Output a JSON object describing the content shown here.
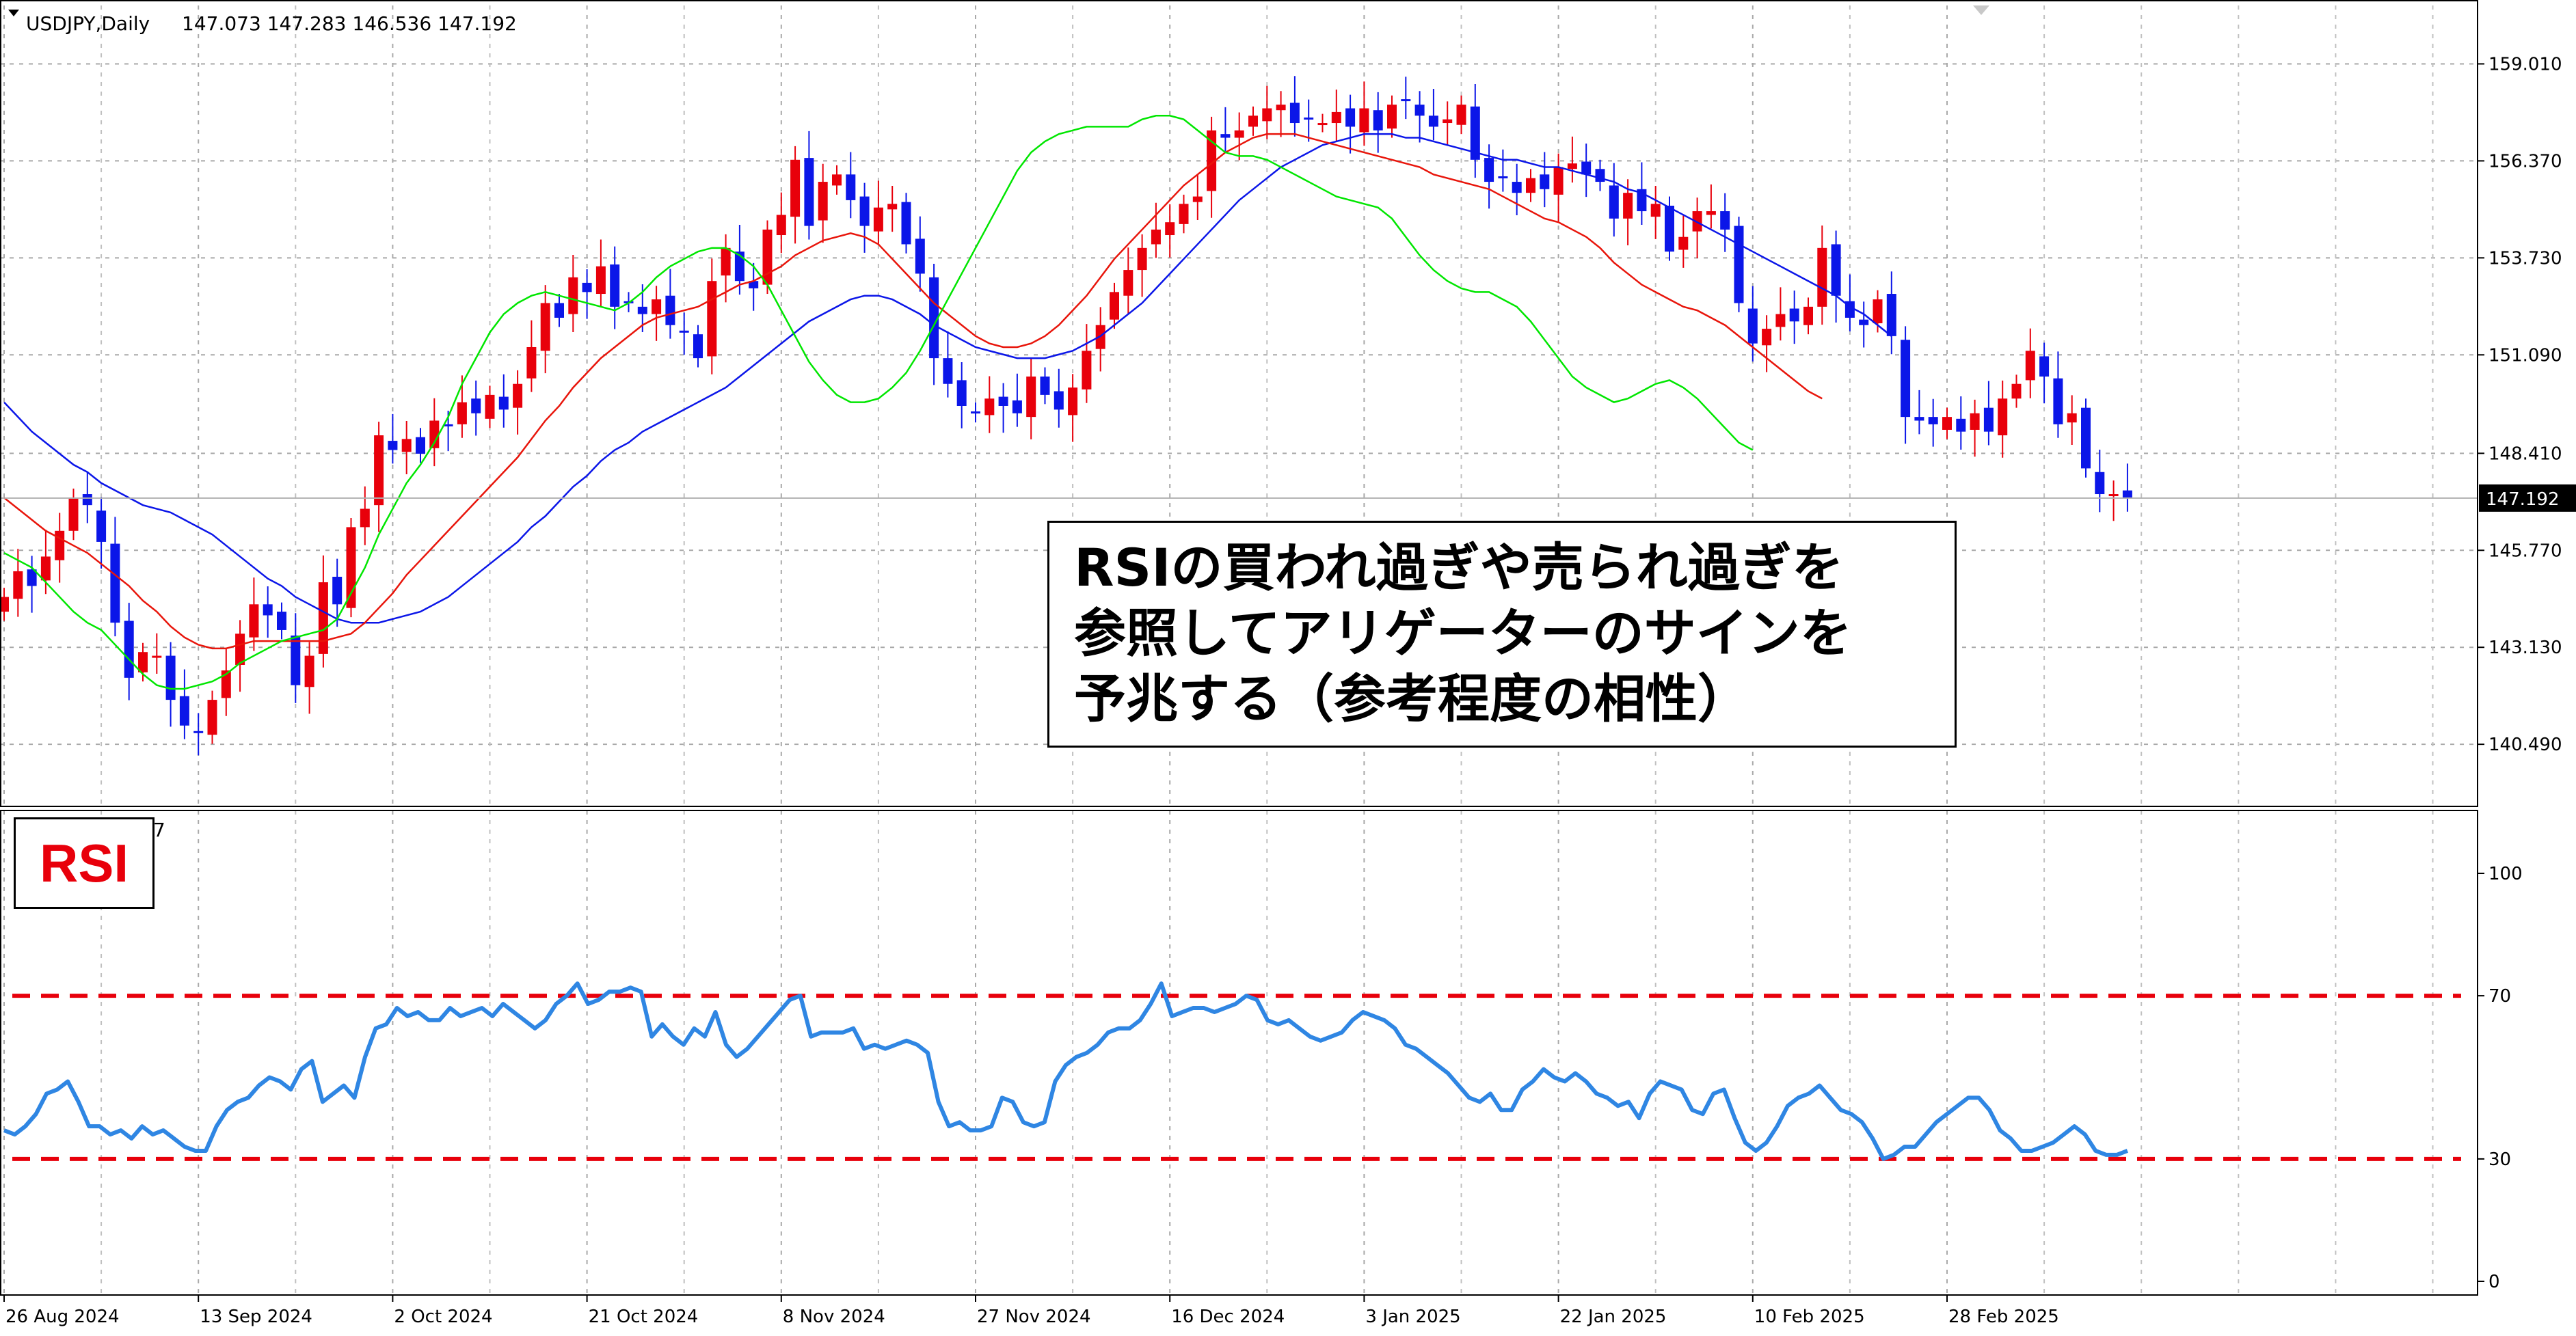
{
  "header": {
    "symbol_label": "USDJPY,Daily",
    "ohlc": "147.073 147.283 146.536 147.192",
    "rsi_header_suffix": "7"
  },
  "note": {
    "lines": [
      "RSIの買われ過ぎや売られ過ぎを",
      "参照してアリゲーターのサインを",
      "予兆する（参考程度の相性）"
    ]
  },
  "rsi_label": "RSI",
  "chart_data": [
    {
      "type": "candlestick",
      "ylim": [
        138.8,
        160.6
      ],
      "price_ticks": [
        "159.010",
        "156.370",
        "153.730",
        "151.090",
        "148.410",
        "145.770",
        "143.130",
        "140.490"
      ],
      "current_price_label": "147.192",
      "current_price": 147.192,
      "x_tick_labels": [
        "26 Aug 2024",
        "13 Sep 2024",
        "2 Oct 2024",
        "21 Oct 2024",
        "8 Nov 2024",
        "27 Nov 2024",
        "16 Dec 2024",
        "3 Jan 2025",
        "22 Jan 2025",
        "10 Feb 2025",
        "28 Feb 2025"
      ],
      "x_tick_bar_index": [
        0,
        14,
        28,
        42,
        56,
        70,
        84,
        98,
        112,
        126,
        140
      ],
      "close": [
        144.5,
        145.2,
        144.8,
        145.6,
        146.3,
        147.2,
        147.0,
        146.0,
        143.8,
        142.3,
        143.0,
        142.9,
        141.7,
        141.0,
        140.8,
        141.7,
        142.5,
        143.5,
        144.3,
        144.0,
        143.6,
        142.1,
        142.9,
        144.9,
        144.3,
        146.4,
        146.9,
        148.9,
        148.5,
        148.8,
        148.4,
        149.3,
        149.2,
        149.8,
        149.5,
        150.0,
        149.6,
        150.3,
        151.3,
        152.5,
        152.1,
        153.2,
        152.8,
        153.5,
        152.4,
        152.5,
        152.2,
        152.6,
        151.9,
        151.7,
        151.0,
        153.1,
        154.0,
        153.1,
        152.9,
        154.5,
        154.9,
        156.4,
        154.6,
        155.8,
        156.0,
        155.3,
        154.6,
        155.1,
        155.2,
        154.1,
        153.3,
        151.0,
        150.3,
        149.7,
        149.5,
        149.9,
        149.7,
        149.5,
        150.5,
        150.0,
        149.6,
        150.2,
        151.2,
        151.9,
        152.8,
        153.4,
        154.0,
        154.5,
        154.7,
        155.2,
        155.4,
        157.2,
        157.0,
        157.2,
        157.6,
        157.8,
        157.9,
        157.4,
        157.5,
        157.4,
        157.7,
        157.3,
        157.8,
        157.2,
        157.9,
        158.0,
        157.6,
        157.3,
        157.5,
        157.9,
        156.4,
        155.8,
        155.9,
        155.5,
        155.9,
        155.6,
        156.2,
        156.3,
        156.0,
        155.8,
        154.8,
        155.5,
        155.0,
        155.2,
        153.9,
        154.3,
        155.0,
        155.0,
        154.5,
        152.5,
        151.4,
        151.8,
        152.2,
        152.0,
        152.4,
        154.0,
        152.7,
        152.1,
        151.9,
        152.6,
        151.6,
        149.4,
        149.3,
        149.2,
        149.4,
        149.0,
        149.5,
        149.0,
        149.9,
        150.3,
        151.2,
        150.5,
        149.2,
        149.5,
        148.0,
        147.3,
        147.3,
        147.192
      ],
      "series": [
        {
          "name": "",
          "color": "#0b16e8",
          "values": [
            149.8,
            149.4,
            149.0,
            148.7,
            148.4,
            148.1,
            147.9,
            147.6,
            147.4,
            147.2,
            147.0,
            146.9,
            146.8,
            146.6,
            146.4,
            146.2,
            145.9,
            145.6,
            145.3,
            145.0,
            144.8,
            144.5,
            144.3,
            144.1,
            143.9,
            143.8,
            143.8,
            143.8,
            143.9,
            144.0,
            144.1,
            144.3,
            144.5,
            144.8,
            145.1,
            145.4,
            145.7,
            146.0,
            146.4,
            146.7,
            147.1,
            147.5,
            147.8,
            148.2,
            148.5,
            148.7,
            149.0,
            149.2,
            149.4,
            149.6,
            149.8,
            150.0,
            150.2,
            150.5,
            150.8,
            151.1,
            151.4,
            151.7,
            152.0,
            152.2,
            152.4,
            152.6,
            152.7,
            152.7,
            152.6,
            152.4,
            152.2,
            151.9,
            151.7,
            151.5,
            151.3,
            151.2,
            151.1,
            151.0,
            151.0,
            151.0,
            151.1,
            151.2,
            151.4,
            151.6,
            151.9,
            152.2,
            152.5,
            152.9,
            153.3,
            153.7,
            154.1,
            154.5,
            154.9,
            155.3,
            155.6,
            155.9,
            156.2,
            156.4,
            156.6,
            156.8,
            156.9,
            157.0,
            157.1,
            157.1,
            157.1,
            157.0,
            157.0,
            156.9,
            156.8,
            156.7,
            156.6,
            156.5,
            156.4,
            156.4,
            156.3,
            156.2,
            156.2,
            156.1,
            156.0,
            155.9,
            155.8,
            155.6,
            155.5,
            155.3,
            155.1,
            154.9,
            154.7,
            154.5,
            154.3,
            154.1,
            153.9,
            153.7,
            153.5,
            153.3,
            153.1,
            152.9,
            152.7,
            152.4,
            152.2,
            151.9,
            151.6
          ],
          "start_index": 0
        },
        {
          "name": "",
          "color": "#e8150b",
          "values": [
            147.2,
            146.9,
            146.6,
            146.3,
            146.1,
            145.9,
            145.7,
            145.4,
            145.1,
            144.8,
            144.4,
            144.1,
            143.7,
            143.4,
            143.2,
            143.1,
            143.1,
            143.2,
            143.3,
            143.3,
            143.3,
            143.3,
            143.3,
            143.3,
            143.4,
            143.5,
            143.8,
            144.2,
            144.6,
            145.1,
            145.5,
            145.9,
            146.3,
            146.7,
            147.1,
            147.5,
            147.9,
            148.3,
            148.8,
            149.3,
            149.7,
            150.2,
            150.6,
            151.0,
            151.3,
            151.6,
            151.9,
            152.1,
            152.2,
            152.3,
            152.4,
            152.6,
            152.8,
            153.0,
            153.1,
            153.3,
            153.5,
            153.8,
            154.0,
            154.2,
            154.3,
            154.4,
            154.3,
            154.1,
            153.7,
            153.3,
            152.9,
            152.5,
            152.2,
            151.9,
            151.6,
            151.4,
            151.3,
            151.3,
            151.4,
            151.6,
            151.9,
            152.3,
            152.7,
            153.2,
            153.7,
            154.1,
            154.5,
            154.9,
            155.3,
            155.7,
            156.0,
            156.3,
            156.6,
            156.8,
            157.0,
            157.1,
            157.1,
            157.1,
            157.0,
            156.9,
            156.8,
            156.7,
            156.6,
            156.5,
            156.4,
            156.3,
            156.2,
            156.0,
            155.9,
            155.8,
            155.7,
            155.6,
            155.4,
            155.2,
            155.0,
            154.8,
            154.7,
            154.5,
            154.3,
            154.0,
            153.6,
            153.3,
            153.0,
            152.8,
            152.6,
            152.4,
            152.3,
            152.1,
            151.9,
            151.6,
            151.3,
            151.0,
            150.7,
            150.4,
            150.1,
            149.9
          ],
          "start_index": 0
        },
        {
          "name": "",
          "color": "#00e600",
          "values": [
            145.7,
            145.5,
            145.3,
            144.9,
            144.5,
            144.1,
            143.8,
            143.6,
            143.2,
            142.8,
            142.4,
            142.1,
            142.0,
            142.0,
            142.1,
            142.2,
            142.4,
            142.7,
            142.9,
            143.1,
            143.3,
            143.4,
            143.5,
            143.6,
            143.9,
            144.6,
            145.3,
            146.2,
            146.9,
            147.6,
            148.1,
            148.7,
            149.4,
            150.3,
            151.0,
            151.7,
            152.2,
            152.5,
            152.7,
            152.8,
            152.7,
            152.6,
            152.5,
            152.4,
            152.3,
            152.5,
            152.8,
            153.2,
            153.5,
            153.7,
            153.9,
            154.0,
            154.0,
            153.8,
            153.5,
            153.0,
            152.3,
            151.6,
            150.9,
            150.4,
            150.0,
            149.8,
            149.8,
            149.9,
            150.2,
            150.6,
            151.2,
            151.9,
            152.6,
            153.3,
            154.0,
            154.7,
            155.4,
            156.1,
            156.6,
            156.9,
            157.1,
            157.2,
            157.3,
            157.3,
            157.3,
            157.3,
            157.5,
            157.6,
            157.6,
            157.5,
            157.2,
            156.9,
            156.6,
            156.5,
            156.5,
            156.4,
            156.2,
            156.0,
            155.8,
            155.6,
            155.4,
            155.3,
            155.2,
            155.1,
            154.8,
            154.3,
            153.8,
            153.4,
            153.1,
            152.9,
            152.8,
            152.8,
            152.6,
            152.4,
            152.0,
            151.5,
            151.0,
            150.5,
            150.2,
            150.0,
            149.8,
            149.9,
            150.1,
            150.3,
            150.4,
            150.2,
            149.9,
            149.5,
            149.1,
            148.7,
            148.5
          ],
          "start_index": 0
        }
      ]
    },
    {
      "type": "line",
      "title": "RSI",
      "ylim": [
        0,
        100
      ],
      "y_ticks": [
        "100",
        "70",
        "30",
        "0"
      ],
      "levels": [
        70,
        30
      ],
      "level_color": "#e8000b",
      "line_color": "#2f86e3",
      "values": [
        37,
        36,
        38,
        41,
        46,
        47,
        49,
        44,
        38,
        38,
        36,
        37,
        35,
        38,
        36,
        37,
        35,
        33,
        32,
        32,
        38,
        42,
        44,
        45,
        48,
        50,
        49,
        47,
        52,
        54,
        44,
        46,
        48,
        45,
        55,
        62,
        63,
        67,
        65,
        66,
        64,
        64,
        67,
        65,
        66,
        67,
        65,
        68,
        66,
        64,
        62,
        64,
        68,
        70,
        73,
        68,
        69,
        71,
        71,
        72,
        71,
        60,
        63,
        60,
        58,
        62,
        60,
        66,
        58,
        55,
        57,
        60,
        63,
        66,
        69,
        70,
        60,
        61,
        61,
        61,
        62,
        57,
        58,
        57,
        58,
        59,
        58,
        56,
        44,
        38,
        39,
        37,
        37,
        38,
        45,
        44,
        39,
        38,
        39,
        49,
        53,
        55,
        56,
        58,
        61,
        62,
        62,
        64,
        68,
        73,
        65,
        66,
        67,
        67,
        66,
        67,
        68,
        70,
        69,
        64,
        63,
        64,
        62,
        60,
        59,
        60,
        61,
        64,
        66,
        65,
        64,
        62,
        58,
        57,
        55,
        53,
        51,
        48,
        45,
        44,
        46,
        42,
        42,
        47,
        49,
        52,
        50,
        49,
        51,
        49,
        46,
        45,
        43,
        44,
        40,
        46,
        49,
        48,
        47,
        42,
        41,
        46,
        47,
        40,
        34,
        32,
        34,
        38,
        43,
        45,
        46,
        48,
        45,
        42,
        41,
        39,
        35,
        30,
        31,
        33,
        33,
        36,
        39,
        41,
        43,
        45,
        45,
        42,
        37,
        35,
        32,
        32,
        33,
        34,
        36,
        38,
        36,
        32,
        31,
        31,
        32
      ],
      "start_index": 0
    }
  ]
}
